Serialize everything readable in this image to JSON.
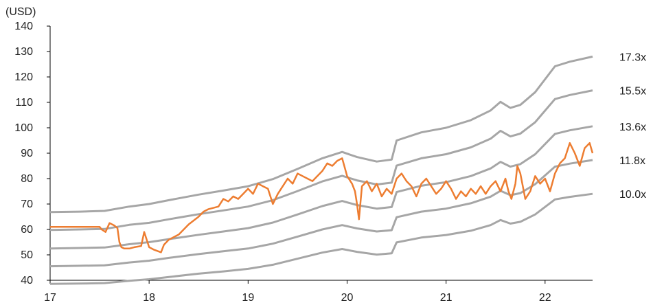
{
  "chart_data": {
    "type": "line",
    "ylabel": "(USD)",
    "xlabel": "",
    "ylim": [
      40,
      140
    ],
    "xlim": [
      17,
      22.48
    ],
    "grid": false,
    "x_ticks": [
      17,
      18,
      19,
      20,
      21,
      22
    ],
    "x_tick_labels": [
      "17",
      "18",
      "19",
      "20",
      "21",
      "22"
    ],
    "y_ticks": [
      40,
      50,
      60,
      70,
      80,
      90,
      100,
      110,
      120,
      130,
      140
    ],
    "y_tick_labels": [
      "40",
      "50",
      "60",
      "70",
      "80",
      "90",
      "100",
      "110",
      "120",
      "130",
      "140"
    ],
    "band_x": [
      17,
      17.3,
      17.55,
      17.8,
      18.0,
      18.2,
      18.5,
      18.75,
      19.0,
      19.25,
      19.5,
      19.75,
      19.95,
      20.1,
      20.3,
      20.45,
      20.5,
      20.75,
      21.0,
      21.25,
      21.45,
      21.55,
      21.65,
      21.75,
      21.9,
      22.1,
      22.25,
      22.48
    ],
    "series": [
      {
        "name": "17.3x",
        "color": "#a6a6a6",
        "values": [
          66.8,
          67.0,
          67.3,
          69.0,
          70.0,
          71.5,
          73.7,
          75.3,
          77.0,
          79.8,
          83.8,
          88.0,
          90.5,
          88.5,
          86.7,
          87.5,
          95.0,
          98.2,
          100.0,
          103.0,
          106.8,
          110.2,
          107.8,
          109.0,
          114.0,
          124.2,
          126.0,
          128.0
        ]
      },
      {
        "name": "15.5x",
        "color": "#a6a6a6",
        "values": [
          59.8,
          60.0,
          60.2,
          61.8,
          62.6,
          64.0,
          66.0,
          67.5,
          69.0,
          71.5,
          75.1,
          78.9,
          81.1,
          79.3,
          77.7,
          78.4,
          85.1,
          88.0,
          89.6,
          92.3,
          95.7,
          98.8,
          96.6,
          97.7,
          102.2,
          111.3,
          112.9,
          114.7
        ]
      },
      {
        "name": "13.6x",
        "color": "#a6a6a6",
        "values": [
          52.5,
          52.7,
          52.9,
          54.2,
          55.0,
          56.2,
          57.9,
          59.2,
          60.5,
          62.7,
          65.9,
          69.2,
          71.2,
          69.6,
          68.2,
          68.8,
          74.7,
          77.2,
          78.6,
          81.0,
          84.0,
          86.6,
          84.7,
          85.7,
          89.6,
          97.6,
          99.0,
          100.6
        ]
      },
      {
        "name": "11.8x",
        "color": "#a6a6a6",
        "values": [
          45.5,
          45.7,
          45.9,
          47.0,
          47.7,
          48.8,
          50.3,
          51.4,
          52.5,
          54.4,
          57.2,
          60.0,
          61.7,
          60.4,
          59.2,
          59.7,
          64.8,
          67.0,
          68.2,
          70.3,
          72.9,
          75.2,
          73.5,
          74.3,
          77.8,
          84.7,
          85.9,
          87.3
        ]
      },
      {
        "name": "10.0x",
        "color": "#a6a6a6",
        "values": [
          38.6,
          38.7,
          38.9,
          39.8,
          40.4,
          41.3,
          42.6,
          43.5,
          44.5,
          46.1,
          48.5,
          50.9,
          52.3,
          51.2,
          50.1,
          50.6,
          54.9,
          56.8,
          57.8,
          59.5,
          61.7,
          63.7,
          62.3,
          63.0,
          65.9,
          71.8,
          72.8,
          74.0
        ]
      },
      {
        "name": "",
        "color": "#ed7d31",
        "x": [
          17,
          17.5,
          17.52,
          17.56,
          17.6,
          17.65,
          17.68,
          17.7,
          17.72,
          17.75,
          17.8,
          17.85,
          17.92,
          17.95,
          18.0,
          18.05,
          18.12,
          18.15,
          18.2,
          18.25,
          18.3,
          18.4,
          18.5,
          18.55,
          18.6,
          18.7,
          18.75,
          18.8,
          18.85,
          18.9,
          18.95,
          19.0,
          19.05,
          19.1,
          19.15,
          19.2,
          19.25,
          19.3,
          19.35,
          19.4,
          19.45,
          19.5,
          19.55,
          19.6,
          19.65,
          19.7,
          19.75,
          19.8,
          19.85,
          19.9,
          19.95,
          20.0,
          20.05,
          20.08,
          20.1,
          20.12,
          20.15,
          20.2,
          20.25,
          20.3,
          20.35,
          20.4,
          20.45,
          20.5,
          20.55,
          20.6,
          20.65,
          20.7,
          20.75,
          20.8,
          20.85,
          20.9,
          20.95,
          21.0,
          21.05,
          21.1,
          21.15,
          21.2,
          21.25,
          21.3,
          21.35,
          21.4,
          21.45,
          21.5,
          21.55,
          21.6,
          21.63,
          21.66,
          21.7,
          21.72,
          21.75,
          21.78,
          21.8,
          21.85,
          21.9,
          21.95,
          22.0,
          22.05,
          22.1,
          22.15,
          22.2,
          22.25,
          22.3,
          22.35,
          22.4,
          22.45,
          22.48
        ],
        "values": [
          61,
          61,
          60,
          59,
          62.5,
          61.5,
          60.5,
          55,
          53,
          52.5,
          52.5,
          53,
          53.5,
          59,
          53,
          52,
          51,
          54,
          56,
          57,
          58,
          62,
          65,
          67,
          68,
          69,
          72,
          71,
          73,
          72,
          74,
          76,
          74,
          78,
          77,
          76,
          70,
          74,
          77,
          80,
          78,
          82,
          81,
          80,
          79,
          81,
          83,
          86,
          85,
          87,
          88,
          81,
          78,
          75,
          70,
          64,
          77,
          79,
          75,
          78,
          73,
          76,
          74,
          80,
          82,
          79,
          77,
          73,
          78,
          80,
          77,
          74,
          76,
          79,
          76,
          72,
          75,
          73,
          76,
          74,
          77,
          74,
          77,
          79,
          75,
          80,
          75,
          72,
          78,
          85,
          82,
          76,
          72,
          75,
          81,
          78,
          80,
          75,
          82,
          86,
          88,
          94,
          90,
          85,
          92,
          94,
          90
        ]
      }
    ]
  }
}
